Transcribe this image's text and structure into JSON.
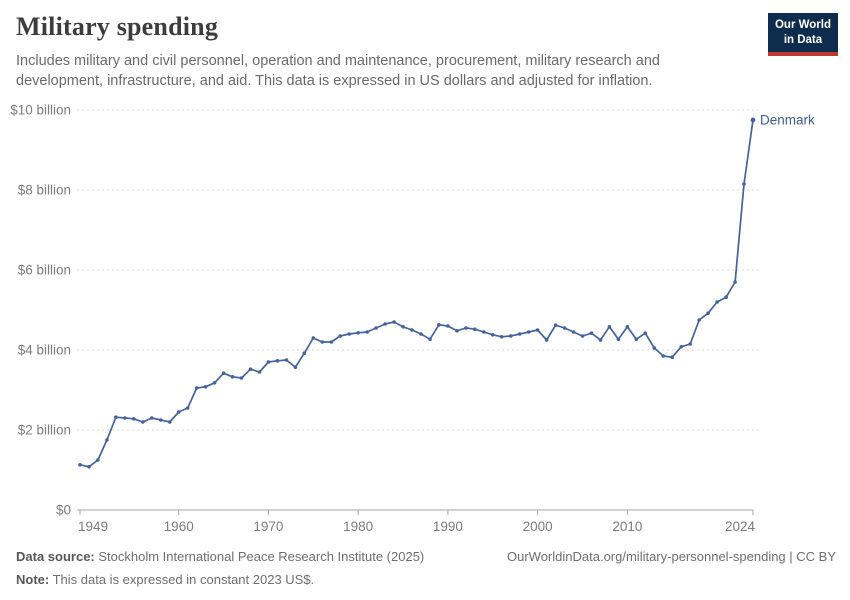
{
  "header": {
    "title": "Military spending",
    "subtitle": "Includes military and civil personnel, operation and maintenance, procurement, military research and development, infrastructure, and aid. This data is expressed in US dollars and adjusted for inflation.",
    "logo": {
      "line1": "Our World",
      "line2": "in Data"
    }
  },
  "chart_data": {
    "type": "line",
    "title": "Military spending",
    "entity": "Denmark",
    "unit": "US dollars (constant 2023)",
    "x": [
      1949,
      1950,
      1951,
      1952,
      1953,
      1954,
      1955,
      1956,
      1957,
      1958,
      1959,
      1960,
      1961,
      1962,
      1963,
      1964,
      1965,
      1966,
      1967,
      1968,
      1969,
      1970,
      1971,
      1972,
      1973,
      1974,
      1975,
      1976,
      1977,
      1978,
      1979,
      1980,
      1981,
      1982,
      1983,
      1984,
      1985,
      1986,
      1987,
      1988,
      1989,
      1990,
      1991,
      1992,
      1993,
      1994,
      1995,
      1996,
      1997,
      1998,
      1999,
      2000,
      2001,
      2002,
      2003,
      2004,
      2005,
      2006,
      2007,
      2008,
      2009,
      2010,
      2011,
      2012,
      2013,
      2014,
      2015,
      2016,
      2017,
      2018,
      2019,
      2020,
      2021,
      2022,
      2023,
      2024
    ],
    "values": [
      1.13,
      1.08,
      1.25,
      1.75,
      2.32,
      2.3,
      2.28,
      2.2,
      2.3,
      2.25,
      2.2,
      2.45,
      2.55,
      3.05,
      3.08,
      3.18,
      3.42,
      3.33,
      3.3,
      3.52,
      3.45,
      3.7,
      3.73,
      3.75,
      3.57,
      3.92,
      4.3,
      4.2,
      4.2,
      4.35,
      4.4,
      4.43,
      4.45,
      4.55,
      4.65,
      4.7,
      4.58,
      4.5,
      4.4,
      4.27,
      4.63,
      4.6,
      4.48,
      4.55,
      4.52,
      4.45,
      4.38,
      4.33,
      4.35,
      4.4,
      4.45,
      4.5,
      4.25,
      4.62,
      4.55,
      4.45,
      4.35,
      4.42,
      4.25,
      4.58,
      4.27,
      4.58,
      4.27,
      4.42,
      4.05,
      3.85,
      3.82,
      4.08,
      4.15,
      4.75,
      4.92,
      5.2,
      5.32,
      5.7,
      8.15,
      9.75
    ],
    "ylim": [
      0,
      10
    ],
    "yticks": [
      {
        "value": 0,
        "label": "$0"
      },
      {
        "value": 2,
        "label": "$2 billion"
      },
      {
        "value": 4,
        "label": "$4 billion"
      },
      {
        "value": 6,
        "label": "$6 billion"
      },
      {
        "value": 8,
        "label": "$8 billion"
      },
      {
        "value": 10,
        "label": "$10 billion"
      }
    ],
    "xticks": [
      1949,
      1960,
      1970,
      1980,
      1990,
      2000,
      2010,
      2024
    ],
    "grid": true,
    "legend_position": "end-of-line",
    "colors": {
      "line": "#44639c",
      "entity_label": "#3d5c94",
      "grid": "#d7d7d7",
      "axis": "#a6a6a6",
      "tick_label": "#7c7c7c"
    }
  },
  "footer": {
    "source_label": "Data source:",
    "source_text": " Stockholm International Peace Research Institute (2025)",
    "note_label": "Note:",
    "note_text": " This data is expressed in constant 2023 US$.",
    "citation": "OurWorldinData.org/military-personnel-spending | CC BY"
  }
}
